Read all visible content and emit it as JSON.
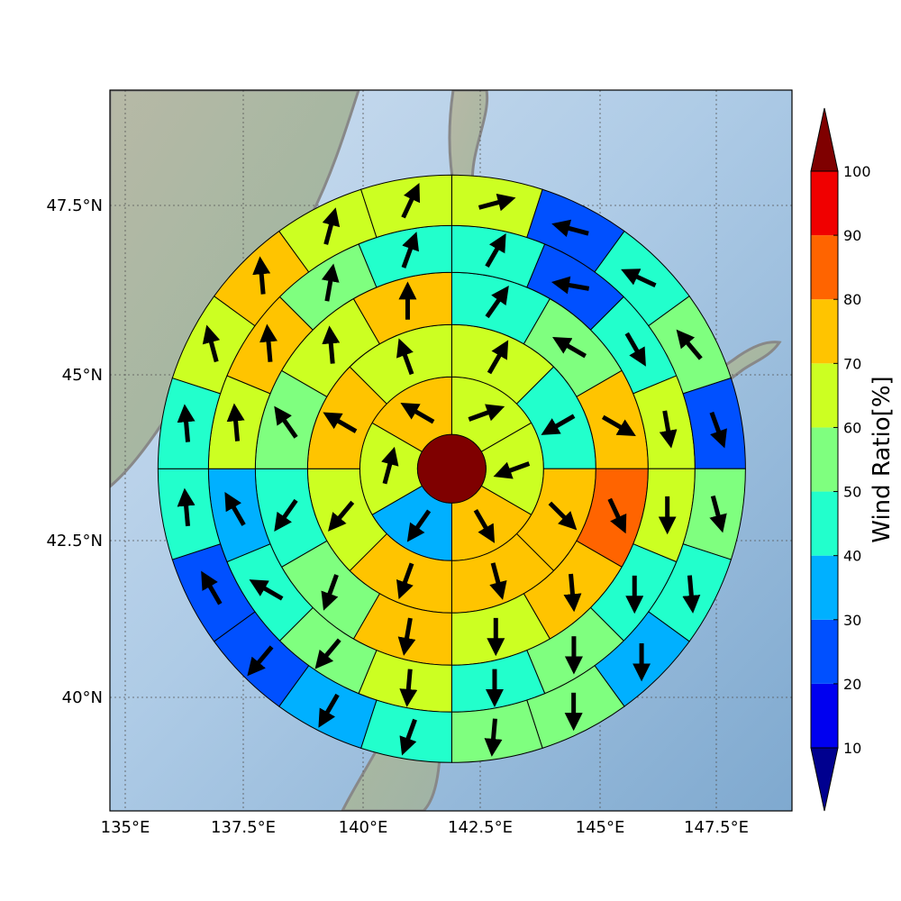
{
  "map": {
    "lon_ticks": [
      "135°E",
      "137.5°E",
      "140°E",
      "142.5°E",
      "145°E",
      "147.5°E"
    ],
    "lat_ticks": [
      "47.5°N",
      "45°N",
      "42.5°N",
      "40°N"
    ],
    "lon_range": [
      134.8,
      149.0
    ],
    "lat_range": [
      38.2,
      49.2
    ],
    "grid": true
  },
  "colorbar": {
    "label": "Wind Ratio[%]",
    "ticks": [
      "10",
      "20",
      "30",
      "40",
      "50",
      "60",
      "70",
      "80",
      "90",
      "100"
    ],
    "colors": [
      "#00008f",
      "#0000f0",
      "#0050ff",
      "#00b0ff",
      "#22ffcc",
      "#7fff7f",
      "#ccff22",
      "#ffc400",
      "#ff6400",
      "#f00000",
      "#7f0000"
    ],
    "extend": "both"
  },
  "chart_data": {
    "type": "polar-heatmap",
    "center_lon_lat": [
      141.85,
      43.6
    ],
    "center_value": 100,
    "rings": [
      {
        "n": 6,
        "values": [
          62,
          65,
          72,
          38,
          64,
          72
        ],
        "arrows": [
          70,
          250,
          150,
          215,
          15,
          300
        ]
      },
      {
        "n": 8,
        "values": [
          65,
          45,
          72,
          72,
          72,
          66,
          72,
          65
        ],
        "arrows": [
          30,
          240,
          135,
          165,
          200,
          220,
          300,
          340
        ]
      },
      {
        "n": 12,
        "values": [
          45,
          50,
          72,
          82,
          72,
          65,
          70,
          50,
          45,
          52,
          66,
          72
        ],
        "arrows": [
          35,
          300,
          120,
          155,
          175,
          180,
          190,
          200,
          215,
          325,
          355,
          0
        ]
      },
      {
        "n": 16,
        "values": [
          45,
          25,
          45,
          65,
          62,
          45,
          50,
          45,
          65,
          52,
          45,
          35,
          65,
          72,
          55,
          45
        ],
        "arrows": [
          30,
          280,
          150,
          170,
          180,
          180,
          180,
          180,
          185,
          220,
          300,
          330,
          355,
          355,
          10,
          20
        ]
      },
      {
        "n": 20,
        "values": [
          66,
          20,
          45,
          56,
          25,
          50,
          45,
          35,
          50,
          55,
          45,
          35,
          20,
          25,
          40,
          45,
          68,
          72,
          66,
          66
        ],
        "arrows": [
          75,
          285,
          295,
          320,
          160,
          165,
          175,
          180,
          180,
          185,
          200,
          210,
          220,
          330,
          355,
          355,
          345,
          355,
          15,
          25
        ]
      }
    ]
  }
}
